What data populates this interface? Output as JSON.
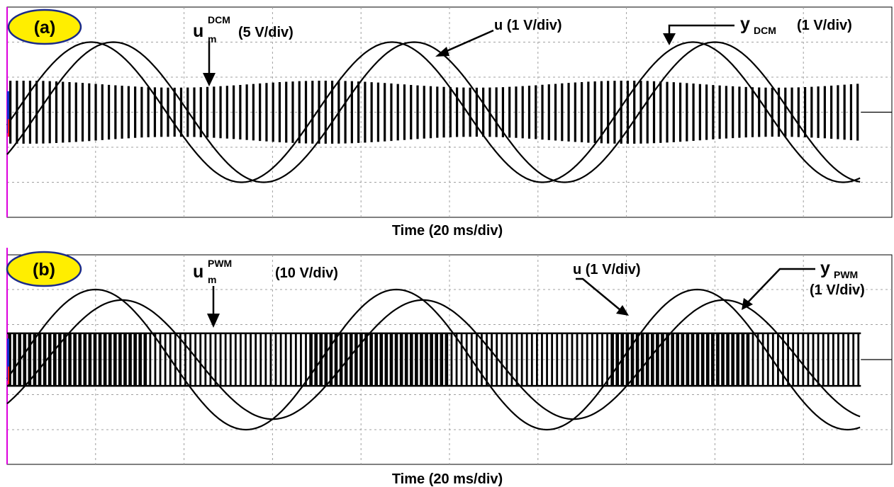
{
  "colors": {
    "background": "#ffffff",
    "grid": "#a0a0a0",
    "trace": "#000000",
    "badge_fill": "#ffee00",
    "badge_stroke": "#1a2a8a",
    "left_axis": "#dd00dd",
    "marker_red": "#ff2020",
    "marker_blue": "#1030d0"
  },
  "icons": {
    "arrow": "arrow-pointer-icon"
  },
  "panels": [
    {
      "tag": "(a)",
      "xlabel": "Time (20 ms/div)",
      "labels": {
        "um_main": "u",
        "um_sub": "m",
        "um_sup": "DCM",
        "um_scale": "(5 V/div)",
        "u": "u (1 V/div)",
        "y_main": "y",
        "y_sub": "DCM",
        "y_scale": "(1 V/div)",
        "y_scale2": ""
      }
    },
    {
      "tag": "(b)",
      "xlabel": "Time (20 ms/div)",
      "labels": {
        "um_main": "u",
        "um_sub": "m",
        "um_sup": "PWM",
        "um_scale": "(10 V/div)",
        "u": "u (1 V/div)",
        "y_main": "y",
        "y_sub": "PWM",
        "y_scale": "",
        "y_scale2": "(1 V/div)"
      }
    }
  ],
  "chart_data": [
    {
      "type": "line",
      "title": "(a)",
      "xlabel": "Time (20 ms/div)",
      "x_unit": "div",
      "xlim": [
        0,
        10
      ],
      "ylim": [
        -3,
        3
      ],
      "grid": true,
      "series": [
        {
          "name": "u (1 V/div)",
          "kind": "sine",
          "amplitude_div": 2.0,
          "period_div": 3.4,
          "crest_div": 1.2
        },
        {
          "name": "y (1 V/div)",
          "kind": "sine",
          "amplitude_div": 2.0,
          "period_div": 3.4,
          "crest_div": 0.95
        },
        {
          "name": "u (5 V/div)",
          "kind": "switching",
          "envelope_mean_div": 0.8,
          "envelope_swing_div": 0.1,
          "pulse_count": 130
        }
      ]
    },
    {
      "type": "line",
      "title": "(b)",
      "xlabel": "Time (20 ms/div)",
      "x_unit": "div",
      "xlim": [
        0,
        10
      ],
      "ylim": [
        -3,
        3
      ],
      "grid": true,
      "series": [
        {
          "name": "u (1 V/div)",
          "kind": "sine",
          "amplitude_div": 2.0,
          "period_div": 3.4,
          "crest_div": 1.0
        },
        {
          "name": "y (1 V/div)",
          "kind": "sine",
          "amplitude_div": 1.7,
          "period_div": 3.4,
          "crest_div": 1.3
        },
        {
          "name": "u (10 V/div)",
          "kind": "pwm",
          "level_div": 0.75,
          "pulse_count": 170,
          "dense_blocks_div": [
            [
              0.0,
              1.6
            ],
            [
              3.4,
              5.0
            ],
            [
              6.8,
              8.4
            ]
          ]
        }
      ]
    }
  ]
}
